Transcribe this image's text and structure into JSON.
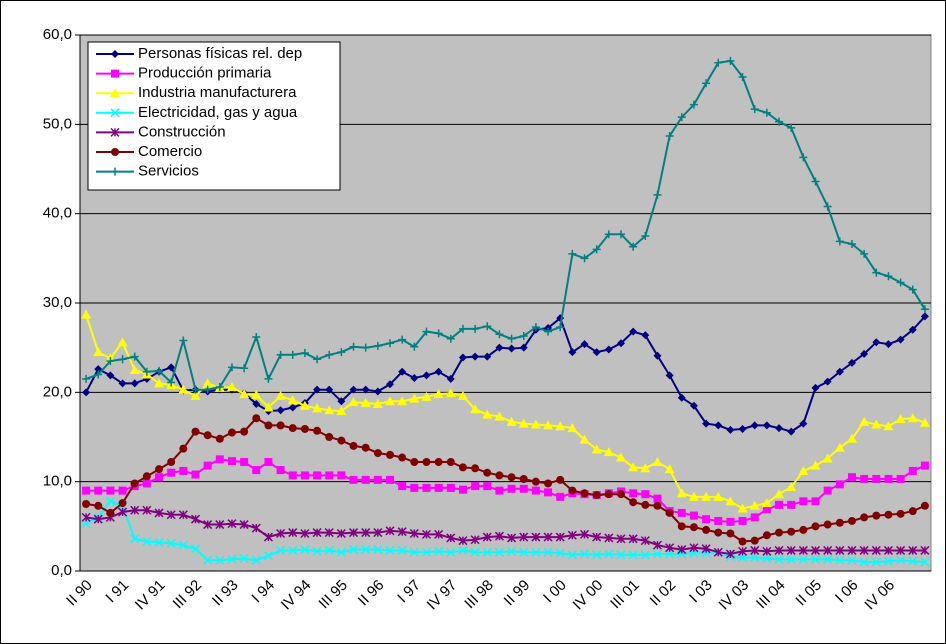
{
  "chart_data": {
    "type": "line",
    "categories": [
      "II 90",
      null,
      null,
      "I 91",
      null,
      null,
      "IV 91",
      null,
      null,
      "III 92",
      null,
      null,
      "II 93",
      null,
      null,
      "I 94",
      null,
      null,
      "IV 94",
      null,
      null,
      "III 95",
      null,
      null,
      "II 96",
      null,
      null,
      "I 97",
      null,
      null,
      "IV 97",
      null,
      null,
      "III 98",
      null,
      null,
      "II 99",
      null,
      null,
      "I 00",
      null,
      null,
      "IV 00",
      null,
      null,
      "III 01",
      null,
      null,
      "II 02",
      null,
      null,
      "I 03",
      null,
      null,
      "IV 03",
      null,
      null,
      "III 04",
      null,
      null,
      "II 05",
      null,
      null,
      "I 06",
      null,
      null,
      "IV 06",
      null,
      null,
      null
    ],
    "ylim": [
      0,
      60
    ],
    "yticks": [
      {
        "value": 0,
        "label": "0,0"
      },
      {
        "value": 10,
        "label": "10,0"
      },
      {
        "value": 20,
        "label": "20,0"
      },
      {
        "value": 30,
        "label": "30,0"
      },
      {
        "value": 40,
        "label": "40,0"
      },
      {
        "value": 50,
        "label": "50,0"
      },
      {
        "value": 60,
        "label": "60,0"
      }
    ],
    "grid": true,
    "legend": "upper-left",
    "series": [
      {
        "name": "Personas físicas rel. dep",
        "color": "#000080",
        "marker": "diamond",
        "values": [
          20.0,
          22.6,
          21.9,
          21.0,
          21.0,
          21.5,
          22.3,
          22.8,
          20.2,
          20.3,
          20.1,
          20.3,
          20.3,
          19.9,
          18.7,
          17.9,
          18.0,
          18.3,
          18.8,
          20.3,
          20.3,
          19.0,
          20.3,
          20.3,
          20.1,
          20.9,
          22.3,
          21.6,
          21.9,
          22.3,
          21.5,
          23.9,
          24.0,
          24.0,
          25.0,
          24.9,
          25.0,
          27.0,
          27.2,
          28.3,
          24.5,
          25.4,
          24.5,
          24.8,
          25.5,
          26.8,
          26.4,
          24.1,
          21.9,
          19.4,
          18.5,
          16.5,
          16.3,
          15.8,
          15.9,
          16.3,
          16.3,
          16.0,
          15.6,
          16.5,
          20.5,
          21.2,
          22.3,
          23.3,
          24.3,
          25.6,
          25.4,
          25.9,
          27.0,
          28.5
        ]
      },
      {
        "name": "Producción primaria",
        "color": "#ff00ff",
        "marker": "square",
        "values": [
          9.0,
          9.0,
          9.0,
          9.0,
          9.5,
          9.8,
          10.5,
          11.0,
          11.2,
          10.8,
          11.8,
          12.5,
          12.3,
          12.2,
          11.3,
          12.2,
          11.3,
          10.7,
          10.7,
          10.7,
          10.7,
          10.7,
          10.2,
          10.2,
          10.2,
          10.2,
          9.5,
          9.3,
          9.3,
          9.3,
          9.3,
          9.1,
          9.5,
          9.5,
          9.0,
          9.2,
          9.2,
          9.0,
          8.8,
          8.3,
          8.7,
          8.6,
          8.5,
          8.7,
          8.9,
          8.7,
          8.6,
          8.1,
          6.7,
          6.5,
          6.2,
          5.8,
          5.6,
          5.5,
          5.6,
          6.0,
          6.9,
          7.4,
          7.4,
          7.8,
          7.8,
          9.0,
          9.7,
          10.5,
          10.3,
          10.3,
          10.3,
          10.3,
          11.2,
          11.8
        ]
      },
      {
        "name": "Industria manufacturera",
        "color": "#ffff00",
        "marker": "triangle",
        "values": [
          28.7,
          24.5,
          23.8,
          25.6,
          22.5,
          22.0,
          21.0,
          20.8,
          20.3,
          19.6,
          21.0,
          20.5,
          20.6,
          19.8,
          19.7,
          18.3,
          19.6,
          19.1,
          18.5,
          18.2,
          18.0,
          17.9,
          18.9,
          18.8,
          18.7,
          19.0,
          19.0,
          19.3,
          19.5,
          19.8,
          19.9,
          19.6,
          18.1,
          17.5,
          17.3,
          16.7,
          16.5,
          16.4,
          16.3,
          16.2,
          16.0,
          14.7,
          13.6,
          13.3,
          12.7,
          11.6,
          11.5,
          12.2,
          11.4,
          8.7,
          8.3,
          8.3,
          8.3,
          7.8,
          7.0,
          7.3,
          7.6,
          8.6,
          9.4,
          11.2,
          11.8,
          12.6,
          13.8,
          14.8,
          16.7,
          16.4,
          16.2,
          17.0,
          17.1,
          16.6
        ]
      },
      {
        "name": "Electricidad, gas y agua",
        "color": "#00ffff",
        "marker": "x",
        "values": [
          5.3,
          6.0,
          7.8,
          7.3,
          3.6,
          3.3,
          3.2,
          3.1,
          2.9,
          2.5,
          1.2,
          1.2,
          1.3,
          1.4,
          1.2,
          1.7,
          2.3,
          2.3,
          2.4,
          2.2,
          2.3,
          2.1,
          2.4,
          2.4,
          2.4,
          2.3,
          2.3,
          2.1,
          2.1,
          2.2,
          2.1,
          2.3,
          2.1,
          2.1,
          2.1,
          2.2,
          2.1,
          2.1,
          2.1,
          2.0,
          1.8,
          1.9,
          1.8,
          1.9,
          1.8,
          1.8,
          1.8,
          1.9,
          1.9,
          1.9,
          2.0,
          2.0,
          2.1,
          1.6,
          1.5,
          1.5,
          1.4,
          1.3,
          1.3,
          1.3,
          1.3,
          1.3,
          1.2,
          1.2,
          1.0,
          1.0,
          1.1,
          1.2,
          1.1,
          1.0
        ]
      },
      {
        "name": "Construcción",
        "color": "#800080",
        "marker": "star",
        "values": [
          6.0,
          5.8,
          6.0,
          6.6,
          6.8,
          6.8,
          6.5,
          6.3,
          6.3,
          5.8,
          5.2,
          5.2,
          5.3,
          5.2,
          4.8,
          3.8,
          4.2,
          4.3,
          4.2,
          4.3,
          4.3,
          4.2,
          4.3,
          4.3,
          4.3,
          4.5,
          4.4,
          4.2,
          4.1,
          4.1,
          3.7,
          3.4,
          3.5,
          3.8,
          3.9,
          3.7,
          3.8,
          3.8,
          3.8,
          3.8,
          4.0,
          4.1,
          3.8,
          3.7,
          3.6,
          3.6,
          3.4,
          2.9,
          2.6,
          2.4,
          2.6,
          2.5,
          2.1,
          1.9,
          2.2,
          2.3,
          2.2,
          2.3,
          2.3,
          2.3,
          2.3,
          2.3,
          2.3,
          2.3,
          2.3,
          2.3,
          2.3,
          2.3,
          2.3,
          2.3
        ]
      },
      {
        "name": "Comercio",
        "color": "#800000",
        "marker": "circle",
        "values": [
          7.5,
          7.3,
          6.5,
          7.6,
          9.8,
          10.6,
          11.4,
          12.2,
          13.7,
          15.6,
          15.2,
          14.8,
          15.5,
          15.6,
          17.1,
          16.3,
          16.3,
          16.0,
          15.9,
          15.7,
          15.0,
          14.6,
          14.0,
          13.8,
          13.2,
          13.0,
          12.7,
          12.2,
          12.2,
          12.2,
          12.2,
          11.6,
          11.5,
          11.0,
          10.7,
          10.5,
          10.3,
          10.0,
          9.8,
          10.2,
          9.0,
          8.7,
          8.5,
          8.6,
          8.6,
          7.7,
          7.4,
          7.3,
          6.5,
          5.0,
          4.9,
          4.6,
          4.3,
          4.2,
          3.3,
          3.4,
          4.0,
          4.3,
          4.4,
          4.6,
          5.0,
          5.2,
          5.4,
          5.6,
          6.0,
          6.2,
          6.3,
          6.4,
          6.7,
          7.3
        ]
      },
      {
        "name": "Servicios",
        "color": "#008080",
        "marker": "plus",
        "values": [
          21.5,
          22.0,
          23.5,
          23.7,
          24.0,
          22.3,
          22.4,
          21.1,
          25.8,
          20.3,
          20.3,
          20.6,
          22.8,
          22.7,
          26.2,
          21.5,
          24.2,
          24.2,
          24.4,
          23.7,
          24.2,
          24.5,
          25.1,
          25.0,
          25.2,
          25.5,
          25.9,
          25.1,
          26.8,
          26.6,
          26.0,
          27.1,
          27.1,
          27.4,
          26.5,
          26.0,
          26.3,
          27.3,
          26.8,
          27.3,
          35.5,
          35.0,
          36.0,
          37.7,
          37.7,
          36.3,
          37.5,
          42.1,
          48.7,
          50.8,
          52.2,
          54.6,
          56.9,
          57.1,
          55.3,
          51.7,
          51.3,
          50.3,
          49.6,
          46.3,
          43.6,
          40.8,
          36.9,
          36.6,
          35.5,
          33.4,
          33.0,
          32.3,
          31.5,
          29.3
        ]
      }
    ]
  }
}
